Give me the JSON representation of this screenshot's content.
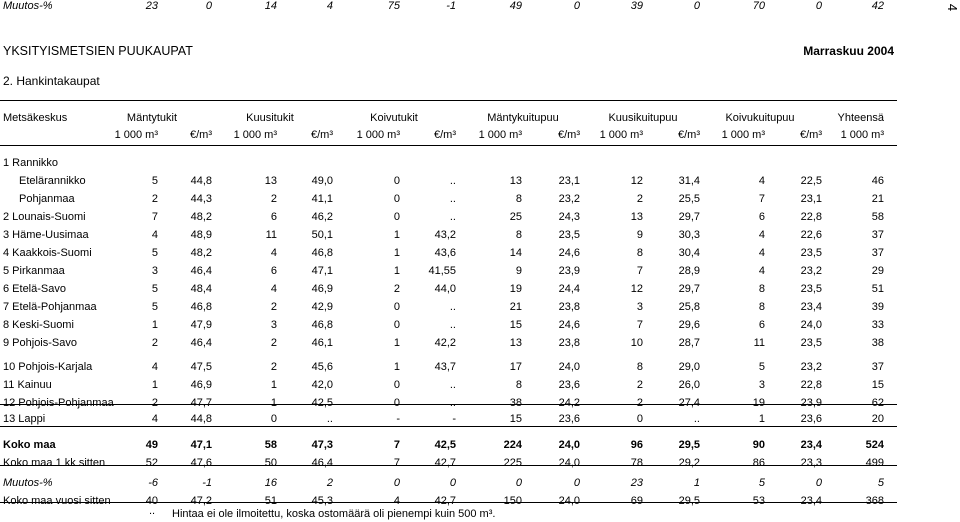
{
  "page_number": "4",
  "header": {
    "title": "YKSITYISMETSIEN PUUKAUPAT",
    "date": "Marraskuu 2004"
  },
  "section_title": "2.  Hankintakaupat",
  "columns": {
    "region": "Metsäkeskus",
    "groups": [
      "Mäntytukit",
      "Kuusitukit",
      "Koivutukit",
      "Mäntykuitupuu",
      "Kuusikuitupuu",
      "Koivukuitupuu",
      "Yhteensä"
    ],
    "units": [
      "1 000 m³",
      "€/m³",
      "1 000 m³",
      "€/m³",
      "1 000 m³",
      "€/m³",
      "1 000 m³",
      "€/m³",
      "1 000 m³",
      "€/m³",
      "1 000 m³",
      "€/m³",
      "1 000 m³"
    ]
  },
  "rows": [
    {
      "label": "1 Rannikko",
      "indent": 0,
      "values": []
    },
    {
      "label": "Etelärannikko",
      "indent": 1,
      "values": [
        "5",
        "44,8",
        "13",
        "49,0",
        "0",
        "..",
        "13",
        "23,1",
        "12",
        "31,4",
        "4",
        "22,5",
        "46"
      ]
    },
    {
      "label": "Pohjanmaa",
      "indent": 1,
      "values": [
        "2",
        "44,3",
        "2",
        "41,1",
        "0",
        "..",
        "8",
        "23,2",
        "2",
        "25,5",
        "7",
        "23,1",
        "21"
      ]
    },
    {
      "label": "2 Lounais-Suomi",
      "indent": 0,
      "values": [
        "7",
        "48,2",
        "6",
        "46,2",
        "0",
        "..",
        "25",
        "24,3",
        "13",
        "29,7",
        "6",
        "22,8",
        "58"
      ]
    },
    {
      "label": "3 Häme-Uusimaa",
      "indent": 0,
      "values": [
        "4",
        "48,9",
        "11",
        "50,1",
        "1",
        "43,2",
        "8",
        "23,5",
        "9",
        "30,3",
        "4",
        "22,6",
        "37"
      ]
    },
    {
      "label": "4 Kaakkois-Suomi",
      "indent": 0,
      "values": [
        "5",
        "48,2",
        "4",
        "46,8",
        "1",
        "43,6",
        "14",
        "24,6",
        "8",
        "30,4",
        "4",
        "23,5",
        "37"
      ]
    },
    {
      "label": "5 Pirkanmaa",
      "indent": 0,
      "values": [
        "3",
        "46,4",
        "6",
        "47,1",
        "1",
        "41,55",
        "9",
        "23,9",
        "7",
        "28,9",
        "4",
        "23,2",
        "29"
      ]
    },
    {
      "label": "6 Etelä-Savo",
      "indent": 0,
      "values": [
        "5",
        "48,4",
        "4",
        "46,9",
        "2",
        "44,0",
        "19",
        "24,4",
        "12",
        "29,7",
        "8",
        "23,5",
        "51"
      ]
    },
    {
      "label": "7 Etelä-Pohjanmaa",
      "indent": 0,
      "values": [
        "5",
        "46,8",
        "2",
        "42,9",
        "0",
        "..",
        "21",
        "23,8",
        "3",
        "25,8",
        "8",
        "23,4",
        "39"
      ]
    },
    {
      "label": "8 Keski-Suomi",
      "indent": 0,
      "values": [
        "1",
        "47,9",
        "3",
        "46,8",
        "0",
        "..",
        "15",
        "24,6",
        "7",
        "29,6",
        "6",
        "24,0",
        "33"
      ]
    },
    {
      "label": "9 Pohjois-Savo",
      "indent": 0,
      "values": [
        "2",
        "46,4",
        "2",
        "46,1",
        "1",
        "42,2",
        "13",
        "23,8",
        "10",
        "28,7",
        "11",
        "23,5",
        "38"
      ]
    },
    {
      "label": "10 Pohjois-Karjala",
      "indent": 0,
      "values": [
        "4",
        "47,5",
        "2",
        "45,6",
        "1",
        "43,7",
        "17",
        "24,0",
        "8",
        "29,0",
        "5",
        "23,2",
        "37"
      ]
    },
    {
      "label": "11 Kainuu",
      "indent": 0,
      "values": [
        "1",
        "46,9",
        "1",
        "42,0",
        "0",
        "..",
        "8",
        "23,6",
        "2",
        "26,0",
        "3",
        "22,8",
        "15"
      ]
    },
    {
      "label": "12 Pohjois-Pohjanmaa",
      "indent": 0,
      "values": [
        "2",
        "47,7",
        "1",
        "42,5",
        "0",
        "..",
        "38",
        "24,2",
        "2",
        "27,4",
        "19",
        "23,9",
        "62"
      ]
    },
    {
      "label": "13 Lappi",
      "indent": 0,
      "values": [
        "4",
        "44,8",
        "0",
        "..",
        "-",
        "-",
        "15",
        "23,6",
        "0",
        "..",
        "1",
        "23,6",
        "20"
      ]
    },
    {
      "label": "Koko maa",
      "indent": 0,
      "bold": true,
      "values": [
        "49",
        "47,1",
        "58",
        "47,3",
        "7",
        "42,5",
        "224",
        "24,0",
        "96",
        "29,5",
        "90",
        "23,4",
        "524"
      ]
    },
    {
      "label": "Koko maa 1 kk sitten",
      "indent": 0,
      "values": [
        "52",
        "47,6",
        "50",
        "46,4",
        "7",
        "42,7",
        "225",
        "24,0",
        "78",
        "29,2",
        "86",
        "23,3",
        "499"
      ]
    },
    {
      "label": "Muutos-%",
      "indent": 0,
      "italic": true,
      "values": [
        "-6",
        "-1",
        "16",
        "2",
        "0",
        "0",
        "0",
        "0",
        "23",
        "1",
        "5",
        "0",
        "5"
      ]
    },
    {
      "label": "Koko maa vuosi sitten",
      "indent": 0,
      "values": [
        "40",
        "47,2",
        "51",
        "45,3",
        "4",
        "42,7",
        "150",
        "24,0",
        "69",
        "29,5",
        "53",
        "23,4",
        "368"
      ]
    },
    {
      "label": "Muutos-%",
      "indent": 0,
      "italic": true,
      "values": [
        "23",
        "0",
        "14",
        "4",
        "75",
        "-1",
        "49",
        "0",
        "39",
        "0",
        "70",
        "0",
        "42"
      ]
    }
  ],
  "footnote": {
    "mark": "..",
    "text": "Hintaa ei ole ilmoitettu, koska ostomäärä oli pienempi kuin 500 m³."
  }
}
